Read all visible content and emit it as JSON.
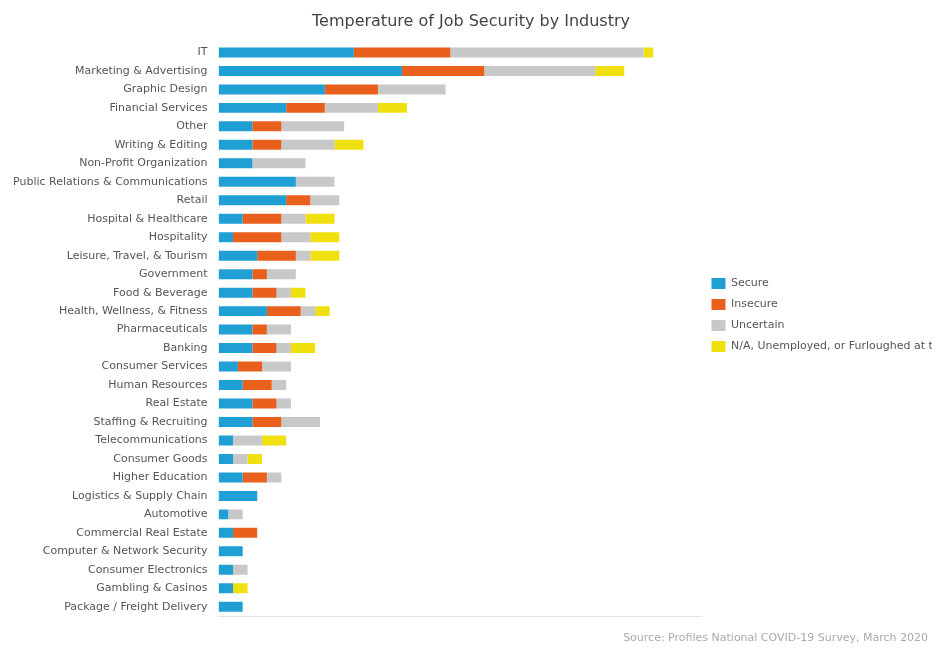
{
  "chart_data": {
    "type": "bar",
    "orientation": "horizontal",
    "stacked": true,
    "title": "Temperature of Job Security by Industry",
    "annotation": "Source: Profiles National COVID-19 Survey, March 2020",
    "categories": [
      "IT",
      "Marketing & Advertising",
      "Graphic Design",
      "Financial Services",
      "Other",
      "Writing & Editing",
      "Non-Profit Organization",
      "Public Relations & Communications",
      "Retail",
      "Hospital & Healthcare",
      "Hospitality",
      "Leisure, Travel, & Tourism",
      "Government",
      "Food & Beverage",
      "Health, Wellness, & Fitness",
      "Pharmaceuticals",
      "Banking",
      "Consumer Services",
      "Human Resources",
      "Real Estate",
      "Staffing & Recruiting",
      "Telecommunications",
      "Consumer Goods",
      "Higher Education",
      "Logistics & Supply Chain",
      "Automotive",
      "Commercial Real Estate",
      "Computer & Network Security",
      "Consumer Electronics",
      "Gambling & Casinos",
      "Package / Freight Delivery"
    ],
    "series": [
      {
        "name": "Secure",
        "color": "#1f9fd4",
        "values": [
          28,
          38,
          22,
          14,
          7,
          7,
          7,
          16,
          14,
          5,
          3,
          8,
          7,
          7,
          10,
          7,
          7,
          4,
          5,
          7,
          7,
          3,
          3,
          5,
          8,
          2,
          3,
          5,
          3,
          3,
          5
        ]
      },
      {
        "name": "Insecure",
        "color": "#e8601c",
        "values": [
          20,
          17,
          11,
          8,
          6,
          6,
          0,
          0,
          5,
          8,
          10,
          8,
          3,
          5,
          7,
          3,
          5,
          5,
          6,
          5,
          6,
          0,
          0,
          5,
          0,
          0,
          5,
          0,
          0,
          0,
          0
        ]
      },
      {
        "name": "Uncertain",
        "color": "#c8c8c8",
        "values": [
          40,
          23,
          14,
          11,
          13,
          11,
          11,
          8,
          6,
          5,
          6,
          3,
          6,
          3,
          3,
          5,
          3,
          6,
          3,
          3,
          8,
          6,
          3,
          3,
          0,
          3,
          0,
          0,
          3,
          0,
          0
        ]
      },
      {
        "name": "N/A, Unemployed, or Furloughed at this time",
        "color": "#f0e010",
        "values": [
          2,
          6,
          0,
          6,
          0,
          6,
          0,
          0,
          0,
          6,
          6,
          6,
          0,
          3,
          3,
          0,
          5,
          0,
          0,
          0,
          0,
          5,
          3,
          0,
          0,
          0,
          0,
          0,
          0,
          3,
          0
        ]
      }
    ],
    "xlim": [
      0,
      100
    ],
    "tick_labels": "y",
    "grid": false,
    "legend": "right"
  }
}
